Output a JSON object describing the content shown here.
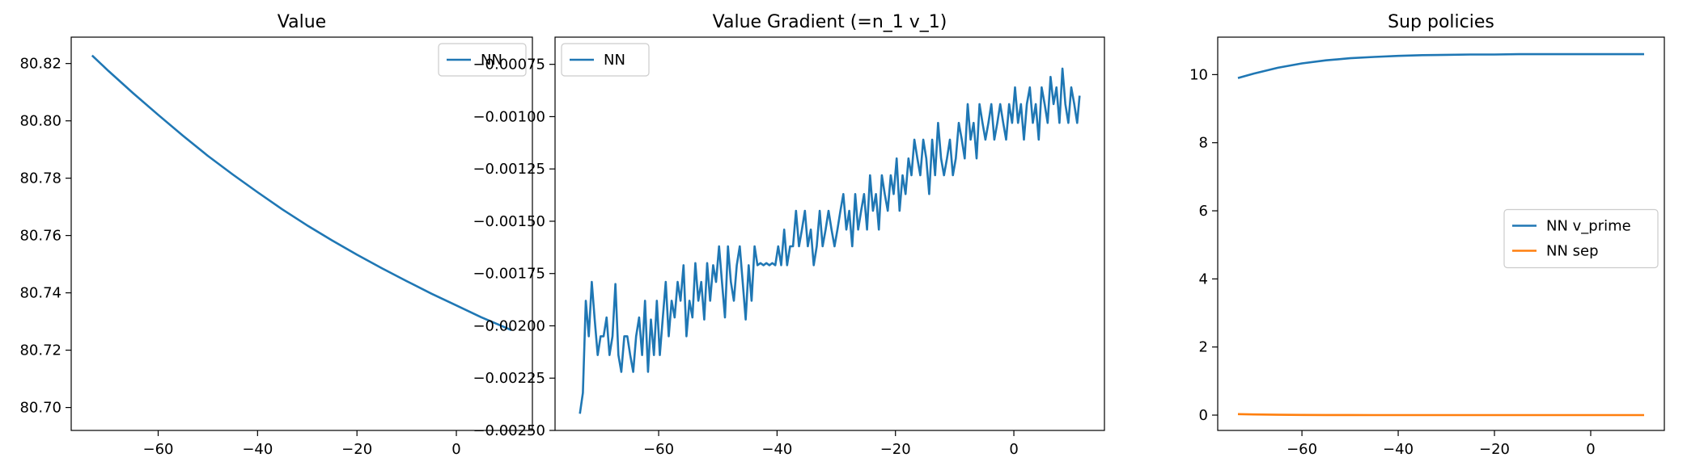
{
  "figure": {
    "panels": 3
  },
  "chart_data": [
    {
      "type": "line",
      "title": "Value",
      "xlabel": "",
      "ylabel": "",
      "xlim": [
        -77.5,
        15.3
      ],
      "ylim": [
        80.692,
        80.8292
      ],
      "xticks": [
        -60,
        -40,
        -20,
        0
      ],
      "yticks": [
        80.7,
        80.72,
        80.74,
        80.76,
        80.78,
        80.8,
        80.82
      ],
      "xtick_labels": [
        "−60",
        "−40",
        "−20",
        "0"
      ],
      "ytick_labels": [
        "80.70",
        "80.72",
        "80.74",
        "80.76",
        "80.78",
        "80.80",
        "80.82"
      ],
      "grid": false,
      "legend": "upper right",
      "series": [
        {
          "name": "NN",
          "color": "#1f77b4",
          "x": [
            -73.3,
            -70,
            -65,
            -60,
            -55,
            -50,
            -45,
            -40,
            -35,
            -30,
            -25,
            -20,
            -15,
            -10,
            -5,
            0,
            5,
            11.1
          ],
          "y": [
            80.8228,
            80.8174,
            80.8096,
            80.8021,
            80.7948,
            80.7878,
            80.7813,
            80.7751,
            80.7691,
            80.7635,
            80.7583,
            80.7533,
            80.7486,
            80.7441,
            80.7397,
            80.7356,
            80.7315,
            80.727
          ]
        }
      ]
    },
    {
      "type": "line",
      "title": "Value Gradient (=n_1 v_1)",
      "xlabel": "",
      "ylabel": "",
      "xlim": [
        -77.5,
        15.3
      ],
      "ylim": [
        -0.0025,
        -0.00062
      ],
      "xticks": [
        -60,
        -40,
        -20,
        0
      ],
      "yticks": [
        -0.0025,
        -0.00225,
        -0.002,
        -0.00175,
        -0.0015,
        -0.00125,
        -0.001,
        -0.00075
      ],
      "xtick_labels": [
        "−60",
        "−40",
        "−20",
        "0"
      ],
      "ytick_labels": [
        "−0.00250",
        "−0.00225",
        "−0.00200",
        "−0.00175",
        "−0.00150",
        "−0.00125",
        "−0.00100",
        "−0.00075"
      ],
      "grid": false,
      "legend": "upper left",
      "series": [
        {
          "name": "NN",
          "color": "#1f77b4",
          "x": [
            -73.3,
            -72.8,
            -72.3,
            -71.8,
            -71.3,
            -70.8,
            -70.3,
            -69.8,
            -69.3,
            -68.8,
            -68.3,
            -67.8,
            -67.3,
            -66.8,
            -66.3,
            -65.8,
            -65.3,
            -64.8,
            -64.3,
            -63.8,
            -63.3,
            -62.8,
            -62.3,
            -61.8,
            -61.3,
            -60.8,
            -60.3,
            -59.8,
            -59.3,
            -58.8,
            -58.3,
            -57.8,
            -57.3,
            -56.8,
            -56.3,
            -55.8,
            -55.3,
            -54.8,
            -54.3,
            -53.8,
            -53.3,
            -52.8,
            -52.3,
            -51.8,
            -51.3,
            -50.8,
            -50.3,
            -49.8,
            -49.3,
            -48.8,
            -48.3,
            -47.8,
            -47.3,
            -46.8,
            -46.3,
            -45.8,
            -45.3,
            -44.8,
            -44.3,
            -43.8,
            -43.3,
            -42.8,
            -42.3,
            -41.8,
            -41.3,
            -40.8,
            -40.3,
            -39.8,
            -39.3,
            -38.8,
            -38.3,
            -37.8,
            -37.3,
            -36.8,
            -36.3,
            -35.8,
            -35.3,
            -34.8,
            -34.3,
            -33.8,
            -33.3,
            -32.8,
            -32.3,
            -31.8,
            -31.3,
            -30.8,
            -30.3,
            -29.8,
            -29.3,
            -28.8,
            -28.3,
            -27.8,
            -27.3,
            -26.8,
            -26.3,
            -25.8,
            -25.3,
            -24.8,
            -24.3,
            -23.8,
            -23.3,
            -22.8,
            -22.3,
            -21.8,
            -21.3,
            -20.8,
            -20.3,
            -19.8,
            -19.3,
            -18.8,
            -18.3,
            -17.8,
            -17.3,
            -16.8,
            -16.3,
            -15.8,
            -15.3,
            -14.8,
            -14.3,
            -13.8,
            -13.3,
            -12.8,
            -12.3,
            -11.8,
            -11.3,
            -10.8,
            -10.3,
            -9.8,
            -9.3,
            -8.8,
            -8.3,
            -7.8,
            -7.3,
            -6.8,
            -6.3,
            -5.8,
            -5.3,
            -4.8,
            -4.3,
            -3.8,
            -3.3,
            -2.8,
            -2.3,
            -1.8,
            -1.3,
            -0.8,
            -0.3,
            0.2,
            0.7,
            1.2,
            1.7,
            2.2,
            2.7,
            3.2,
            3.7,
            4.2,
            4.7,
            5.2,
            5.7,
            6.2,
            6.7,
            7.2,
            7.7,
            8.2,
            8.7,
            9.2,
            9.7,
            10.2,
            10.7,
            11.1
          ],
          "y": [
            -0.00242,
            -0.00232,
            -0.00188,
            -0.00205,
            -0.00179,
            -0.00197,
            -0.00214,
            -0.00205,
            -0.00205,
            -0.00196,
            -0.00214,
            -0.00205,
            -0.0018,
            -0.00214,
            -0.00222,
            -0.00205,
            -0.00205,
            -0.00214,
            -0.00222,
            -0.00205,
            -0.00196,
            -0.00214,
            -0.00188,
            -0.00222,
            -0.00197,
            -0.00214,
            -0.00188,
            -0.00214,
            -0.00196,
            -0.00179,
            -0.00205,
            -0.00188,
            -0.00196,
            -0.00179,
            -0.00188,
            -0.00171,
            -0.00205,
            -0.00188,
            -0.00196,
            -0.0017,
            -0.00188,
            -0.00179,
            -0.00197,
            -0.0017,
            -0.00188,
            -0.00171,
            -0.00179,
            -0.00162,
            -0.00179,
            -0.00196,
            -0.00162,
            -0.00179,
            -0.00188,
            -0.00171,
            -0.00162,
            -0.00179,
            -0.00197,
            -0.00171,
            -0.00188,
            -0.00162,
            -0.00171,
            -0.0017,
            -0.00171,
            -0.0017,
            -0.00171,
            -0.0017,
            -0.00171,
            -0.00162,
            -0.00171,
            -0.00154,
            -0.00171,
            -0.00162,
            -0.00162,
            -0.00145,
            -0.00162,
            -0.00154,
            -0.00145,
            -0.00162,
            -0.00154,
            -0.00171,
            -0.00162,
            -0.00145,
            -0.00162,
            -0.00154,
            -0.00145,
            -0.00154,
            -0.00162,
            -0.00154,
            -0.00145,
            -0.00137,
            -0.00154,
            -0.00145,
            -0.00162,
            -0.00137,
            -0.00154,
            -0.00145,
            -0.00137,
            -0.00154,
            -0.00128,
            -0.00145,
            -0.00137,
            -0.00154,
            -0.00128,
            -0.00137,
            -0.00145,
            -0.00128,
            -0.00137,
            -0.0012,
            -0.00145,
            -0.00128,
            -0.00137,
            -0.0012,
            -0.00128,
            -0.00111,
            -0.0012,
            -0.00128,
            -0.00111,
            -0.0012,
            -0.00137,
            -0.00111,
            -0.00128,
            -0.00103,
            -0.0012,
            -0.00128,
            -0.0012,
            -0.00111,
            -0.00128,
            -0.0012,
            -0.00103,
            -0.00111,
            -0.0012,
            -0.00094,
            -0.00111,
            -0.00103,
            -0.0012,
            -0.00094,
            -0.00103,
            -0.00111,
            -0.00103,
            -0.00094,
            -0.00111,
            -0.00103,
            -0.00094,
            -0.00103,
            -0.00111,
            -0.00094,
            -0.00103,
            -0.00086,
            -0.00103,
            -0.00094,
            -0.00111,
            -0.00094,
            -0.00086,
            -0.00103,
            -0.00094,
            -0.00111,
            -0.00086,
            -0.00094,
            -0.00103,
            -0.00081,
            -0.00094,
            -0.00086,
            -0.00103,
            -0.00077,
            -0.00094,
            -0.00103,
            -0.00086,
            -0.00094,
            -0.00103,
            -0.0009
          ]
        }
      ]
    },
    {
      "type": "line",
      "title": "Sup policies",
      "xlabel": "",
      "ylabel": "",
      "xlim": [
        -77.5,
        15.3
      ],
      "ylim": [
        -0.45,
        11.1
      ],
      "xticks": [
        -60,
        -40,
        -20,
        0
      ],
      "yticks": [
        0,
        2,
        4,
        6,
        8,
        10
      ],
      "xtick_labels": [
        "−60",
        "−40",
        "−20",
        "0"
      ],
      "ytick_labels": [
        "0",
        "2",
        "4",
        "6",
        "8",
        "10"
      ],
      "grid": false,
      "legend": "center right",
      "series": [
        {
          "name": "NN v_prime",
          "color": "#1f77b4",
          "x": [
            -73.3,
            -70,
            -65,
            -60,
            -55,
            -50,
            -45,
            -40,
            -35,
            -30,
            -25,
            -20,
            -15,
            -10,
            -5,
            0,
            5,
            11.1
          ],
          "y": [
            9.9,
            10.03,
            10.2,
            10.33,
            10.42,
            10.48,
            10.52,
            10.55,
            10.57,
            10.58,
            10.59,
            10.59,
            10.6,
            10.6,
            10.6,
            10.6,
            10.6,
            10.6
          ]
        },
        {
          "name": "NN sep",
          "color": "#ff7f0e",
          "x": [
            -73.3,
            -70,
            -65,
            -60,
            -55,
            -50,
            -45,
            -40,
            -35,
            -30,
            -25,
            -20,
            -15,
            -10,
            -5,
            0,
            5,
            11.1
          ],
          "y": [
            0.03,
            0.02,
            0.01,
            0.005,
            0.003,
            0.002,
            0.001,
            0.001,
            0.0,
            0.0,
            0.0,
            0.0,
            0.0,
            0.0,
            0.0,
            0.0,
            0.0,
            0.0
          ]
        }
      ]
    }
  ]
}
